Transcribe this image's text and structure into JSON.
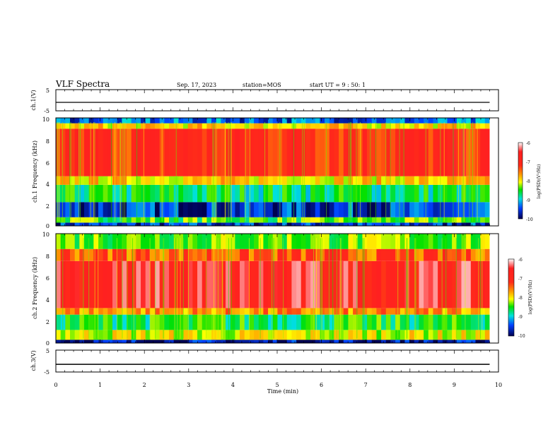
{
  "header": {
    "title": "VLF Spectra",
    "date": "Sep. 17, 2023",
    "station": "station=MOS",
    "start": "start UT =  9 : 50: 1"
  },
  "colorbar": {
    "ticks": [
      "-6",
      "-7",
      "-8",
      "-9",
      "-10"
    ],
    "label": "log(PSD)(V²/Hz)"
  },
  "chart_data": [
    {
      "type": "line",
      "id": "ch1-voltage",
      "ylabel": "ch.1(V)",
      "ylim": [
        -5,
        5
      ],
      "yticks": [
        "5",
        "-5"
      ],
      "xlim": [
        0,
        10
      ],
      "series": [
        {
          "x": [
            0,
            9.8
          ],
          "y": [
            -1,
            -1
          ]
        }
      ]
    },
    {
      "type": "heatmap",
      "id": "ch1-spectrogram",
      "ylabel": "ch.1 Frequency (kHz)",
      "ylim": [
        0,
        10
      ],
      "yticks": [
        "0",
        "2",
        "4",
        "6",
        "8",
        "10"
      ],
      "xlim": [
        0,
        9.8
      ],
      "color_range": [
        -10,
        -6
      ],
      "bands": [
        {
          "from": 0,
          "to": 0.3,
          "level": -9.6
        },
        {
          "from": 0.3,
          "to": 0.8,
          "level": -8.4
        },
        {
          "from": 0.8,
          "to": 2.2,
          "level": -9.6
        },
        {
          "from": 2.2,
          "to": 3.8,
          "level": -8.7
        },
        {
          "from": 3.8,
          "to": 4.6,
          "level": -7.8
        },
        {
          "from": 4.6,
          "to": 9.0,
          "level": -6.9
        },
        {
          "from": 9.0,
          "to": 9.5,
          "level": -7.8
        },
        {
          "from": 9.5,
          "to": 10,
          "level": -9.4
        }
      ]
    },
    {
      "type": "heatmap",
      "id": "ch2-spectrogram",
      "ylabel": "ch.2 Frequency (kHz)",
      "ylim": [
        0,
        10
      ],
      "yticks": [
        "0",
        "2",
        "4",
        "6",
        "8",
        "10"
      ],
      "xlim": [
        0,
        9.8
      ],
      "color_range": [
        -10,
        -6
      ],
      "bands": [
        {
          "from": 0,
          "to": 0.3,
          "level": -9.8
        },
        {
          "from": 0.3,
          "to": 1.2,
          "level": -8.0
        },
        {
          "from": 1.2,
          "to": 2.6,
          "level": -8.6
        },
        {
          "from": 2.6,
          "to": 3.2,
          "level": -7.5
        },
        {
          "from": 3.2,
          "to": 7.5,
          "level": -6.6
        },
        {
          "from": 7.5,
          "to": 8.6,
          "level": -7.2
        },
        {
          "from": 8.6,
          "to": 10,
          "level": -8.3
        }
      ]
    },
    {
      "type": "line",
      "id": "ch3-voltage",
      "ylabel": "ch.3(V)",
      "ylim": [
        -5,
        5
      ],
      "yticks": [
        "5",
        "-5"
      ],
      "xlim": [
        0,
        10
      ],
      "series": [
        {
          "x": [
            0,
            9.8
          ],
          "y": [
            -1.5,
            -1.5
          ]
        }
      ]
    }
  ],
  "xaxis": {
    "label": "Time (min)",
    "ticks": [
      "0",
      "1",
      "2",
      "3",
      "4",
      "5",
      "6",
      "7",
      "8",
      "9",
      "10"
    ],
    "range": [
      0,
      10
    ]
  }
}
